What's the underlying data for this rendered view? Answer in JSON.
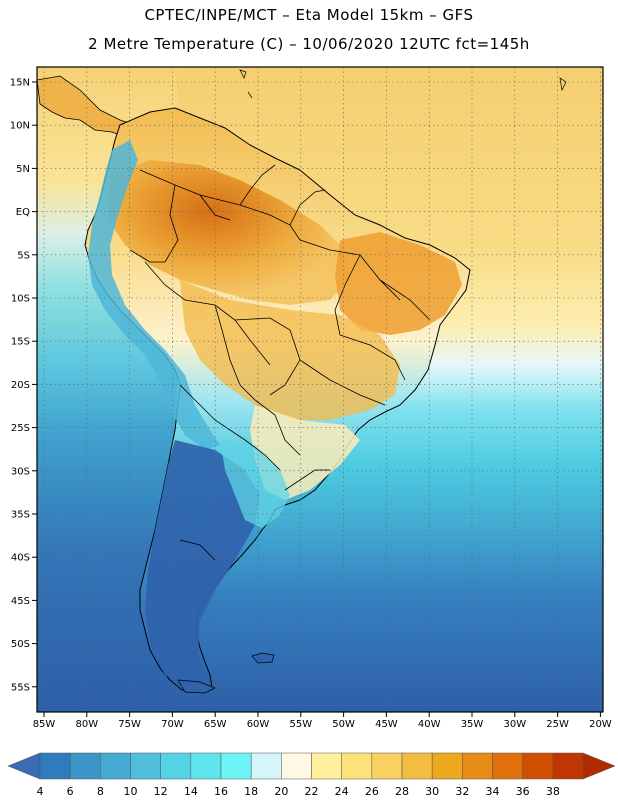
{
  "header": {
    "line1": "CPTEC/INPE/MCT –  Eta Model 15km – GFS",
    "line2": "2 Metre Temperature (C) – 10/06/2020 12UTC fct=145h"
  },
  "lat_labels": [
    "15N",
    "10N",
    "5N",
    "EQ",
    "5S",
    "10S",
    "15S",
    "20S",
    "25S",
    "30S",
    "35S",
    "40S",
    "45S",
    "50S",
    "55S"
  ],
  "lon_labels": [
    "85W",
    "80W",
    "75W",
    "70W",
    "65W",
    "60W",
    "55W",
    "50W",
    "45W",
    "40W",
    "35W",
    "30W",
    "25W",
    "20W"
  ],
  "colorbar": {
    "labels": [
      "4",
      "6",
      "8",
      "10",
      "12",
      "14",
      "16",
      "18",
      "20",
      "22",
      "24",
      "26",
      "28",
      "30",
      "32",
      "34",
      "36",
      "38"
    ],
    "colors": [
      "#3a6cb4",
      "#2e7cbd",
      "#3b95c7",
      "#46a9d2",
      "#4fbfdc",
      "#55d3e4",
      "#5ee4ec",
      "#6ff5f8",
      "#d4f5fb",
      "#fff8e2",
      "#fff09e",
      "#fde27a",
      "#f8d160",
      "#f2bd40",
      "#eea81c",
      "#e88d1a",
      "#e0700c",
      "#d14f00",
      "#c03600",
      "#b02c00"
    ]
  },
  "map_colors": {
    "ocean_deep": "#2d5fa8",
    "ocean_mid": "#3a9cc9",
    "ocean_cyan": "#55cfe0",
    "ocean_light": "#bfeff8",
    "ocean_warm": "#fbe48a",
    "ocean_warmer": "#f3c95e",
    "land_hot": "#d9771a",
    "land_warm": "#eba53a",
    "land_mild": "#f5c866",
    "land_cool": "#fde9a2",
    "andes_cold": "#4fb7d8",
    "patagonia": "#2f63ad"
  }
}
